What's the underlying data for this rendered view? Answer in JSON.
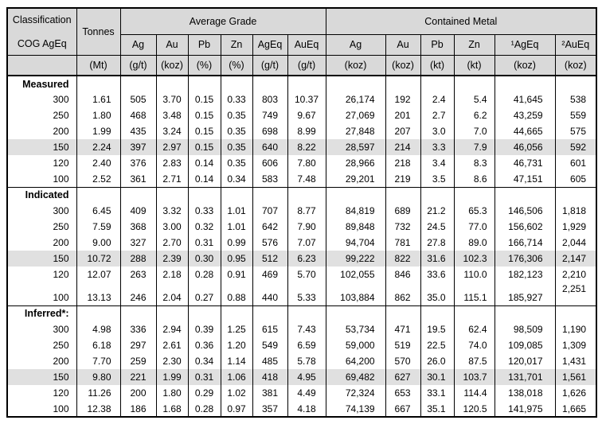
{
  "table": {
    "header": {
      "classification_line1": "Classification",
      "classification_line2": "COG AgEq",
      "tonnes_label": "Tonnes",
      "average_grade_label": "Average Grade",
      "contained_metal_label": "Contained Metal",
      "grade_columns": [
        "Ag",
        "Au",
        "Pb",
        "Zn",
        "AgEq",
        "AuEq"
      ],
      "contained_columns": [
        "Ag",
        "Au",
        "Pb",
        "Zn",
        "¹AgEq",
        "²AuEq"
      ],
      "units": [
        "(Mt)",
        "(g/t)",
        "(koz)",
        "(%)",
        "(%)",
        "(g/t)",
        "(g/t)",
        "(koz)",
        "(koz)",
        "(kt)",
        "(kt)",
        "(koz)",
        "(koz)"
      ]
    },
    "colors": {
      "header_bg": "#d9d9d9",
      "highlight_bg": "#e0e0e0",
      "border": "#000000",
      "text": "#000000"
    },
    "sections": [
      {
        "label": "Measured",
        "rows": [
          {
            "cog": "300",
            "highlight": false,
            "tall": false,
            "values": [
              "1.61",
              "505",
              "3.70",
              "0.15",
              "0.33",
              "803",
              "10.37",
              "26,174",
              "192",
              "2.4",
              "5.4",
              "41,645",
              "538"
            ]
          },
          {
            "cog": "250",
            "highlight": false,
            "tall": false,
            "values": [
              "1.80",
              "468",
              "3.48",
              "0.15",
              "0.35",
              "749",
              "9.67",
              "27,069",
              "201",
              "2.7",
              "6.2",
              "43,259",
              "559"
            ]
          },
          {
            "cog": "200",
            "highlight": false,
            "tall": false,
            "values": [
              "1.99",
              "435",
              "3.24",
              "0.15",
              "0.35",
              "698",
              "8.99",
              "27,848",
              "207",
              "3.0",
              "7.0",
              "44,665",
              "575"
            ]
          },
          {
            "cog": "150",
            "highlight": true,
            "tall": false,
            "values": [
              "2.24",
              "397",
              "2.97",
              "0.15",
              "0.35",
              "640",
              "8.22",
              "28,597",
              "214",
              "3.3",
              "7.9",
              "46,056",
              "592"
            ]
          },
          {
            "cog": "120",
            "highlight": false,
            "tall": false,
            "values": [
              "2.40",
              "376",
              "2.83",
              "0.14",
              "0.35",
              "606",
              "7.80",
              "28,966",
              "218",
              "3.4",
              "8.3",
              "46,731",
              "601"
            ]
          },
          {
            "cog": "100",
            "highlight": false,
            "tall": false,
            "values": [
              "2.52",
              "361",
              "2.71",
              "0.14",
              "0.34",
              "583",
              "7.48",
              "29,201",
              "219",
              "3.5",
              "8.6",
              "47,151",
              "605"
            ]
          }
        ]
      },
      {
        "label": "Indicated",
        "rows": [
          {
            "cog": "300",
            "highlight": false,
            "tall": false,
            "values": [
              "6.45",
              "409",
              "3.32",
              "0.33",
              "1.01",
              "707",
              "8.77",
              "84,819",
              "689",
              "21.2",
              "65.3",
              "146,506",
              "1,818"
            ]
          },
          {
            "cog": "250",
            "highlight": false,
            "tall": false,
            "values": [
              "7.59",
              "368",
              "3.00",
              "0.32",
              "1.01",
              "642",
              "7.90",
              "89,848",
              "732",
              "24.5",
              "77.0",
              "156,602",
              "1,929"
            ]
          },
          {
            "cog": "200",
            "highlight": false,
            "tall": false,
            "values": [
              "9.00",
              "327",
              "2.70",
              "0.31",
              "0.99",
              "576",
              "7.07",
              "94,704",
              "781",
              "27.8",
              "89.0",
              "166,714",
              "2,044"
            ]
          },
          {
            "cog": "150",
            "highlight": true,
            "tall": false,
            "values": [
              "10.72",
              "288",
              "2.39",
              "0.30",
              "0.95",
              "512",
              "6.23",
              "99,222",
              "822",
              "31.6",
              "102.3",
              "176,306",
              "2,147"
            ]
          },
          {
            "cog": "120",
            "highlight": false,
            "tall": false,
            "values": [
              "12.07",
              "263",
              "2.18",
              "0.28",
              "0.91",
              "469",
              "5.70",
              "102,055",
              "846",
              "33.6",
              "110.0",
              "182,123",
              "2,210"
            ]
          },
          {
            "cog": "100",
            "highlight": false,
            "tall": true,
            "values": [
              "13.13",
              "246",
              "2.04",
              "0.27",
              "0.88",
              "440",
              "5.33",
              "103,884",
              "862",
              "35.0",
              "115.1",
              "185,927",
              "2,251"
            ]
          }
        ]
      },
      {
        "label": "Inferred*:",
        "rows": [
          {
            "cog": "300",
            "highlight": false,
            "tall": false,
            "values": [
              "4.98",
              "336",
              "2.94",
              "0.39",
              "1.25",
              "615",
              "7.43",
              "53,734",
              "471",
              "19.5",
              "62.4",
              "98,509",
              "1,190"
            ]
          },
          {
            "cog": "250",
            "highlight": false,
            "tall": false,
            "values": [
              "6.18",
              "297",
              "2.61",
              "0.36",
              "1.20",
              "549",
              "6.59",
              "59,000",
              "519",
              "22.5",
              "74.0",
              "109,085",
              "1,309"
            ]
          },
          {
            "cog": "200",
            "highlight": false,
            "tall": false,
            "values": [
              "7.70",
              "259",
              "2.30",
              "0.34",
              "1.14",
              "485",
              "5.78",
              "64,200",
              "570",
              "26.0",
              "87.5",
              "120,017",
              "1,431"
            ]
          },
          {
            "cog": "150",
            "highlight": true,
            "tall": false,
            "values": [
              "9.80",
              "221",
              "1.99",
              "0.31",
              "1.06",
              "418",
              "4.95",
              "69,482",
              "627",
              "30.1",
              "103.7",
              "131,701",
              "1,561"
            ]
          },
          {
            "cog": "120",
            "highlight": false,
            "tall": false,
            "values": [
              "11.26",
              "200",
              "1.80",
              "0.29",
              "1.02",
              "381",
              "4.49",
              "72,324",
              "653",
              "33.1",
              "114.4",
              "138,018",
              "1,626"
            ]
          },
          {
            "cog": "100",
            "highlight": false,
            "tall": false,
            "values": [
              "12.38",
              "186",
              "1.68",
              "0.28",
              "0.97",
              "357",
              "4.18",
              "74,139",
              "667",
              "35.1",
              "120.5",
              "141,975",
              "1,665"
            ]
          }
        ]
      }
    ]
  }
}
